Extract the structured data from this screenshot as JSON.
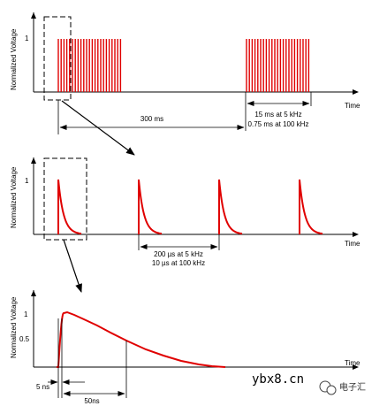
{
  "panel1": {
    "ylabel": "Normalized Voltage",
    "ytick": "1",
    "xlabel": "Time",
    "burst_duration": "15 ms at 5 kHz",
    "burst_duration_alt": "0.75 ms at 100 kHz",
    "period": "300 ms"
  },
  "panel2": {
    "ylabel": "Normalized Voltage",
    "ytick": "1",
    "xlabel": "Time",
    "interval": "200 µs at 5 kHz",
    "interval_alt": "10 µs at 100 kHz"
  },
  "panel3": {
    "ylabel": "Normalized Voltage",
    "ytick_1": "1",
    "ytick_05": "0.5",
    "xlabel": "Time",
    "rise_time": "5 ns",
    "width": "50ns"
  },
  "watermark": "ybx8.cn",
  "brand": "电子汇",
  "colors": {
    "signal": "#e00000",
    "axis": "#000000"
  }
}
